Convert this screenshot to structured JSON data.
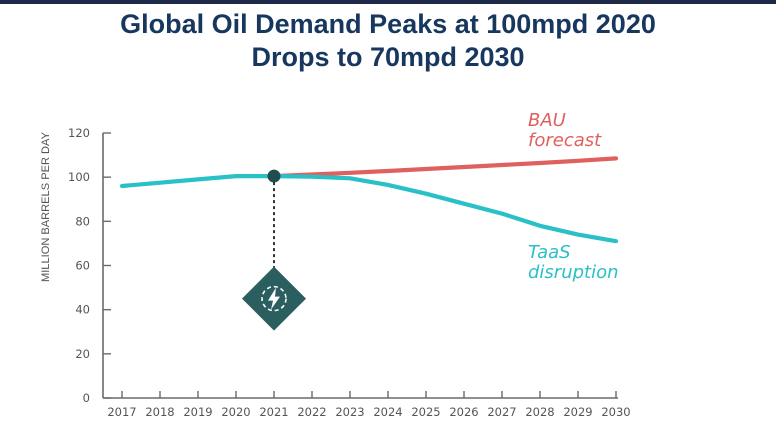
{
  "title": {
    "line1": "Global Oil Demand Peaks at 100mpd 2020",
    "line2": "Drops to 70mpd 2030"
  },
  "chart_data": {
    "type": "line",
    "ylabel": "MILLION BARRELS PER DAY",
    "xlabel": "",
    "ylim": [
      0,
      120
    ],
    "yticks": [
      0,
      20,
      40,
      60,
      80,
      100,
      120
    ],
    "x": [
      "2017",
      "2018",
      "2019",
      "2020",
      "2021",
      "2022",
      "2023",
      "2024",
      "2025",
      "2026",
      "2027",
      "2028",
      "2029",
      "2030"
    ],
    "series": [
      {
        "name": "BAU forecast",
        "label_lines": [
          "BAU",
          "forecast"
        ],
        "color": "#e0605e",
        "values": [
          null,
          null,
          null,
          null,
          100.5,
          101.2,
          102,
          102.8,
          103.7,
          104.6,
          105.5,
          106.4,
          107.4,
          108.5
        ]
      },
      {
        "name": "TaaS disruption",
        "label_lines": [
          "TaaS",
          "disruption"
        ],
        "color": "#29c0c8",
        "values": [
          96,
          97.5,
          99,
          100.5,
          100.5,
          100.2,
          99.5,
          96.5,
          92.5,
          88,
          83.5,
          78,
          74,
          71
        ]
      }
    ],
    "annotations": [
      {
        "type": "peak-marker",
        "x": "2021",
        "y": 100.5,
        "color": "#1f4e4e"
      },
      {
        "type": "disruption-icon",
        "x": "2021",
        "y": 45,
        "icon": "lightning-icon",
        "color": "#2b5f5f"
      }
    ]
  }
}
